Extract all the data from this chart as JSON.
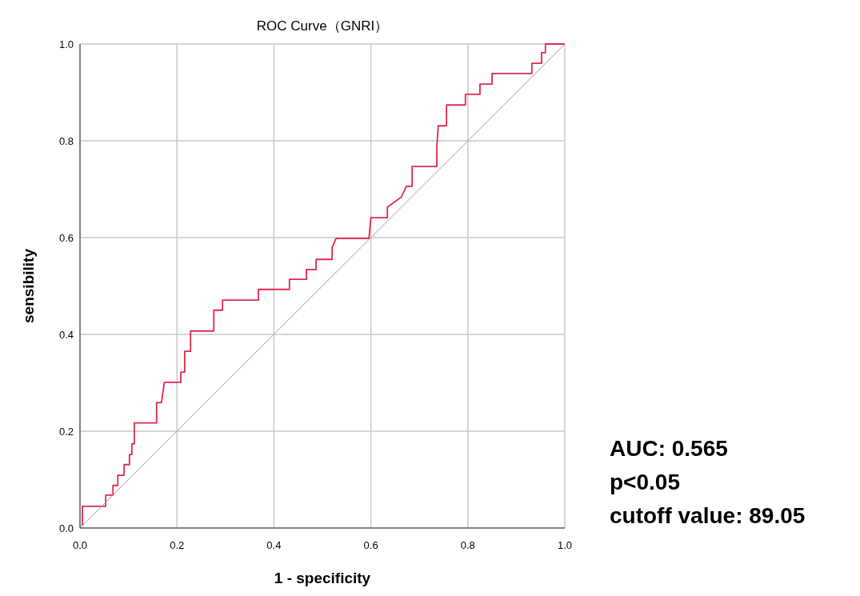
{
  "chart_data": {
    "type": "line",
    "title": "ROC Curve（GNRI）",
    "xlabel": "1 - specificity",
    "ylabel": "sensibility",
    "xlim": [
      0,
      1
    ],
    "ylim": [
      0,
      1
    ],
    "xticks": [
      {
        "value": 0,
        "label": "0.0"
      },
      {
        "value": 0.2,
        "label": "0.2"
      },
      {
        "value": 0.4,
        "label": "0.4"
      },
      {
        "value": 0.6,
        "label": "0.6"
      },
      {
        "value": 0.8,
        "label": "0.8"
      },
      {
        "value": 1,
        "label": "1.0"
      }
    ],
    "yticks": [
      {
        "value": 0,
        "label": "0.0"
      },
      {
        "value": 0.2,
        "label": "0.2"
      },
      {
        "value": 0.4,
        "label": "0.4"
      },
      {
        "value": 0.6,
        "label": "0.6"
      },
      {
        "value": 0.8,
        "label": "0.8"
      },
      {
        "value": 1,
        "label": "1.0"
      }
    ],
    "grid": true,
    "series": [
      {
        "color": "#e0294f",
        "x": [
          0.005,
          0.005,
          0.053,
          0.053,
          0.068,
          0.068,
          0.078,
          0.078,
          0.091,
          0.091,
          0.102,
          0.102,
          0.107,
          0.107,
          0.112,
          0.112,
          0.158,
          0.158,
          0.168,
          0.174,
          0.208,
          0.208,
          0.216,
          0.216,
          0.228,
          0.228,
          0.276,
          0.276,
          0.294,
          0.294,
          0.368,
          0.368,
          0.432,
          0.432,
          0.467,
          0.467,
          0.487,
          0.487,
          0.52,
          0.52,
          0.528,
          0.596,
          0.6,
          0.634,
          0.634,
          0.663,
          0.673,
          0.685,
          0.685,
          0.736,
          0.736,
          0.739,
          0.756,
          0.756,
          0.795,
          0.795,
          0.825,
          0.825,
          0.85,
          0.85,
          0.932,
          0.932,
          0.952,
          0.952,
          0.96,
          0.96,
          1.0
        ],
        "values": [
          0.005,
          0.045,
          0.045,
          0.068,
          0.068,
          0.088,
          0.088,
          0.109,
          0.109,
          0.131,
          0.131,
          0.152,
          0.152,
          0.174,
          0.174,
          0.217,
          0.217,
          0.259,
          0.259,
          0.301,
          0.301,
          0.322,
          0.322,
          0.365,
          0.365,
          0.407,
          0.407,
          0.45,
          0.45,
          0.471,
          0.471,
          0.493,
          0.493,
          0.514,
          0.514,
          0.534,
          0.534,
          0.555,
          0.555,
          0.579,
          0.598,
          0.598,
          0.641,
          0.641,
          0.663,
          0.684,
          0.706,
          0.706,
          0.747,
          0.747,
          0.788,
          0.831,
          0.831,
          0.874,
          0.874,
          0.896,
          0.896,
          0.917,
          0.917,
          0.939,
          0.939,
          0.96,
          0.96,
          0.982,
          0.982,
          1.0,
          1.0
        ]
      },
      {
        "color": "#a0a0a0",
        "x": [
          0,
          1
        ],
        "values": [
          0,
          1
        ]
      }
    ],
    "annotations": [
      "AUC: 0.565",
      "p<0.05",
      "cutoff value: 89.05"
    ]
  }
}
